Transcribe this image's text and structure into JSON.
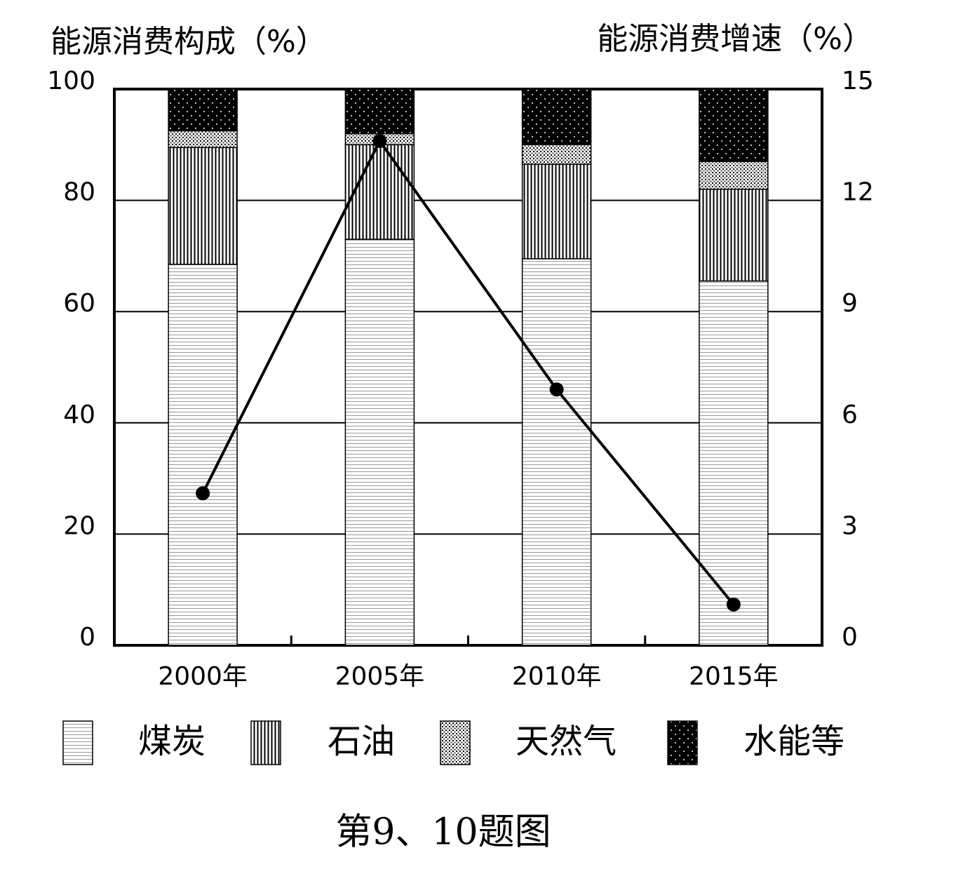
{
  "chart_data": {
    "type": "bar",
    "stacked": true,
    "y_label": "能源消费构成（%）",
    "y2_label": "能源消费增速（%）",
    "caption": "第9、10题图",
    "categories": [
      "2000年",
      "2005年",
      "2010年",
      "2015年"
    ],
    "series": [
      {
        "name": "煤炭",
        "values": [
          68.5,
          73,
          69.5,
          65.5
        ]
      },
      {
        "name": "石油",
        "values": [
          21,
          17,
          17,
          16.5
        ]
      },
      {
        "name": "天然气",
        "values": [
          3,
          2,
          3.5,
          5
        ]
      },
      {
        "name": "水能等",
        "values": [
          7.5,
          8,
          10,
          13
        ]
      }
    ],
    "line": {
      "type": "line",
      "axis": "y2",
      "color": "#000000",
      "values": [
        4.1,
        13.6,
        6.9,
        1.1
      ]
    },
    "ylim": [
      0,
      100
    ],
    "yticks": [
      0,
      20,
      40,
      60,
      80,
      100
    ],
    "y2lim": [
      0,
      15
    ],
    "y2ticks": [
      0,
      3,
      6,
      9,
      12,
      15
    ],
    "grid": true
  }
}
